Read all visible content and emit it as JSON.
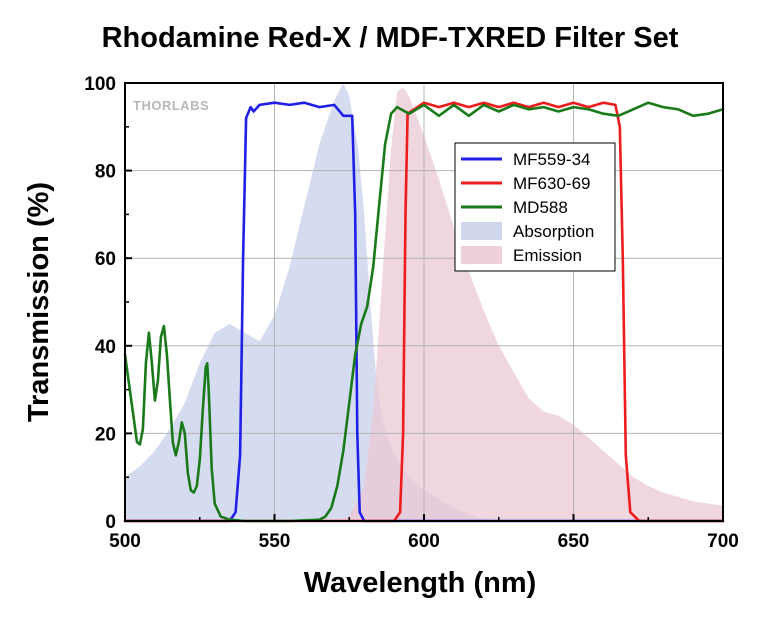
{
  "chart_data": {
    "type": "line",
    "title": "Rhodamine Red-X / MDF-TXRED Filter Set",
    "xlabel": "Wavelength (nm)",
    "ylabel": "Transmission (%)",
    "xlim": [
      500,
      700
    ],
    "ylim": [
      0,
      100
    ],
    "xticks": [
      500,
      550,
      600,
      650,
      700
    ],
    "yticks": [
      0,
      20,
      40,
      60,
      80,
      100
    ],
    "grid": true,
    "legend_position": "top-right",
    "watermark": "THORLABS",
    "series": [
      {
        "name": "MF559-34",
        "kind": "line",
        "color": "#1f1fe8",
        "points": [
          [
            500,
            0
          ],
          [
            535,
            0
          ],
          [
            537,
            2
          ],
          [
            538.5,
            15
          ],
          [
            539.5,
            60
          ],
          [
            540.5,
            92
          ],
          [
            542,
            94.5
          ],
          [
            543,
            93.5
          ],
          [
            545,
            95
          ],
          [
            550,
            95.5
          ],
          [
            555,
            95
          ],
          [
            560,
            95.5
          ],
          [
            565,
            94.5
          ],
          [
            570,
            95
          ],
          [
            573,
            92.5
          ],
          [
            576,
            92.5
          ],
          [
            577,
            70
          ],
          [
            577.7,
            20
          ],
          [
            578.5,
            2
          ],
          [
            580,
            0
          ],
          [
            700,
            0
          ]
        ]
      },
      {
        "name": "MF630-69",
        "kind": "line",
        "color": "#ee1c1c",
        "points": [
          [
            500,
            0
          ],
          [
            590,
            0
          ],
          [
            592,
            2
          ],
          [
            593,
            20
          ],
          [
            593.8,
            70
          ],
          [
            594.5,
            93
          ],
          [
            600,
            95.5
          ],
          [
            605,
            94.5
          ],
          [
            610,
            95.5
          ],
          [
            615,
            94.5
          ],
          [
            620,
            95.5
          ],
          [
            625,
            94.5
          ],
          [
            630,
            95.5
          ],
          [
            635,
            94.5
          ],
          [
            640,
            95.5
          ],
          [
            645,
            94.5
          ],
          [
            650,
            95.5
          ],
          [
            655,
            94.5
          ],
          [
            660,
            95.5
          ],
          [
            664,
            95
          ],
          [
            665.5,
            90
          ],
          [
            666.5,
            60
          ],
          [
            667.5,
            15
          ],
          [
            669,
            2
          ],
          [
            672,
            0
          ],
          [
            700,
            0
          ]
        ]
      },
      {
        "name": "MD588",
        "kind": "line",
        "color": "#1a7a1a",
        "points": [
          [
            500,
            38
          ],
          [
            502,
            28
          ],
          [
            504,
            18
          ],
          [
            505,
            17.5
          ],
          [
            506,
            21
          ],
          [
            507,
            36
          ],
          [
            508,
            43
          ],
          [
            509,
            36
          ],
          [
            510,
            27.5
          ],
          [
            511,
            32
          ],
          [
            512,
            42
          ],
          [
            513,
            44.5
          ],
          [
            514,
            38
          ],
          [
            515,
            28
          ],
          [
            516,
            18
          ],
          [
            517,
            15
          ],
          [
            518,
            18
          ],
          [
            519,
            22.5
          ],
          [
            520,
            20
          ],
          [
            521,
            11
          ],
          [
            522,
            7
          ],
          [
            523,
            6.5
          ],
          [
            524,
            8
          ],
          [
            525,
            14
          ],
          [
            526,
            25
          ],
          [
            527,
            35
          ],
          [
            527.5,
            36
          ],
          [
            528,
            30
          ],
          [
            529,
            12
          ],
          [
            530,
            4
          ],
          [
            532,
            1
          ],
          [
            535,
            0.3
          ],
          [
            540,
            0
          ],
          [
            555,
            0
          ],
          [
            565,
            0.3
          ],
          [
            567,
            1
          ],
          [
            569,
            3
          ],
          [
            571,
            8
          ],
          [
            573,
            16
          ],
          [
            575,
            27
          ],
          [
            577,
            38
          ],
          [
            579,
            45
          ],
          [
            581,
            49
          ],
          [
            583,
            58
          ],
          [
            585,
            72
          ],
          [
            587,
            86
          ],
          [
            589,
            93
          ],
          [
            591,
            94.5
          ],
          [
            595,
            93
          ],
          [
            600,
            95
          ],
          [
            605,
            92.5
          ],
          [
            610,
            95
          ],
          [
            615,
            92.5
          ],
          [
            620,
            95
          ],
          [
            625,
            93.5
          ],
          [
            630,
            95
          ],
          [
            635,
            94
          ],
          [
            640,
            94.5
          ],
          [
            645,
            93.5
          ],
          [
            650,
            94.5
          ],
          [
            655,
            94
          ],
          [
            660,
            93
          ],
          [
            665,
            92.5
          ],
          [
            670,
            94
          ],
          [
            675,
            95.5
          ],
          [
            680,
            94.5
          ],
          [
            685,
            94
          ],
          [
            690,
            92.5
          ],
          [
            695,
            93
          ],
          [
            700,
            94
          ]
        ]
      },
      {
        "name": "Absorption",
        "kind": "area",
        "color": "#c8d0ea",
        "points": [
          [
            500,
            10
          ],
          [
            505,
            12.5
          ],
          [
            510,
            16
          ],
          [
            515,
            21
          ],
          [
            520,
            27
          ],
          [
            525,
            36
          ],
          [
            530,
            43
          ],
          [
            535,
            45
          ],
          [
            540,
            43
          ],
          [
            545,
            41
          ],
          [
            550,
            47
          ],
          [
            555,
            58
          ],
          [
            560,
            72
          ],
          [
            565,
            86
          ],
          [
            570,
            96
          ],
          [
            573,
            100
          ],
          [
            575,
            97
          ],
          [
            578,
            85
          ],
          [
            580,
            70
          ],
          [
            582,
            50
          ],
          [
            584,
            33
          ],
          [
            586,
            23
          ],
          [
            590,
            15
          ],
          [
            595,
            10
          ],
          [
            600,
            7
          ],
          [
            605,
            5
          ],
          [
            610,
            3
          ],
          [
            615,
            1.5
          ],
          [
            620,
            0.5
          ],
          [
            625,
            0
          ],
          [
            700,
            0
          ]
        ]
      },
      {
        "name": "Emission",
        "kind": "area",
        "color": "#ebc8d4",
        "points": [
          [
            500,
            0
          ],
          [
            570,
            0
          ],
          [
            575,
            1
          ],
          [
            580,
            8
          ],
          [
            583,
            25
          ],
          [
            586,
            55
          ],
          [
            589,
            85
          ],
          [
            591,
            98
          ],
          [
            593,
            99
          ],
          [
            595,
            97
          ],
          [
            600,
            88
          ],
          [
            605,
            78
          ],
          [
            610,
            67
          ],
          [
            615,
            57
          ],
          [
            620,
            48
          ],
          [
            625,
            40
          ],
          [
            630,
            34
          ],
          [
            635,
            28
          ],
          [
            640,
            25
          ],
          [
            645,
            24
          ],
          [
            650,
            22
          ],
          [
            655,
            19
          ],
          [
            660,
            16
          ],
          [
            665,
            13
          ],
          [
            670,
            10
          ],
          [
            675,
            8
          ],
          [
            680,
            6.5
          ],
          [
            685,
            5.5
          ],
          [
            690,
            4.5
          ],
          [
            695,
            4
          ],
          [
            700,
            3.5
          ]
        ]
      }
    ]
  }
}
